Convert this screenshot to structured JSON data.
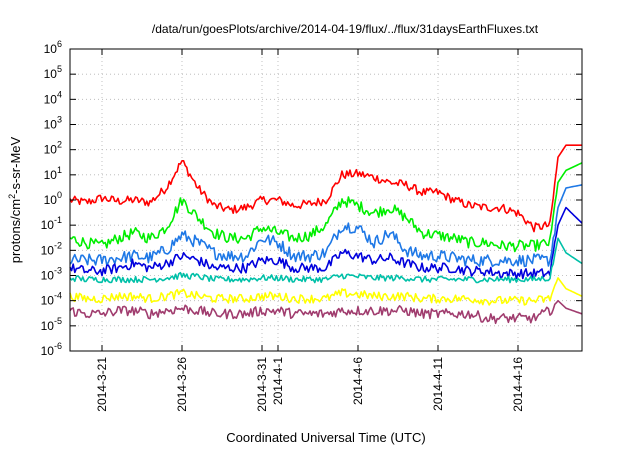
{
  "chart_data": {
    "type": "line",
    "title": "/data/run/goesPlots/archive/2014-04-19/flux/../flux/31daysEarthFluxes.txt",
    "xlabel": "Coordinated Universal Time (UTC)",
    "ylabel": {
      "prefix": "protons/cm",
      "sup": "2",
      "suffix": "-s-sr-MeV"
    },
    "y_scale": "log",
    "ylim": [
      1e-06,
      1000000.0
    ],
    "xlim": [
      "2014-03-19",
      "2014-04-20"
    ],
    "grid": true,
    "x_ticks": [
      {
        "x": "2014-03-21",
        "label": "2014-3-21"
      },
      {
        "x": "2014-03-26",
        "label": "2014-3-26"
      },
      {
        "x": "2014-03-31",
        "label": "2014-3-31"
      },
      {
        "x": "2014-04-01",
        "label": "2014-4-1"
      },
      {
        "x": "2014-04-06",
        "label": "2014-4-6"
      },
      {
        "x": "2014-04-11",
        "label": "2014-4-11"
      },
      {
        "x": "2014-04-16",
        "label": "2014-4-16"
      }
    ],
    "y_ticks": [
      {
        "exp": "-6"
      },
      {
        "exp": "-5"
      },
      {
        "exp": "-4"
      },
      {
        "exp": "-3"
      },
      {
        "exp": "-2"
      },
      {
        "exp": "-1"
      },
      {
        "exp": "0"
      },
      {
        "exp": "1"
      },
      {
        "exp": "2"
      },
      {
        "exp": "3"
      },
      {
        "exp": "4"
      },
      {
        "exp": "5"
      },
      {
        "exp": "6"
      }
    ],
    "series": [
      {
        "color": "#ff0000",
        "values": [
          [
            "2014-03-19",
            1.0
          ],
          [
            "2014-03-20",
            0.8
          ],
          [
            "2014-03-21",
            1.2
          ],
          [
            "2014-03-22",
            0.9
          ],
          [
            "2014-03-23",
            1.0
          ],
          [
            "2014-03-24",
            0.8
          ],
          [
            "2014-03-25",
            3.0
          ],
          [
            "2014-03-26",
            35
          ],
          [
            "2014-03-27",
            3.0
          ],
          [
            "2014-03-28",
            0.6
          ],
          [
            "2014-03-29",
            0.4
          ],
          [
            "2014-03-30",
            0.5
          ],
          [
            "2014-03-31",
            1.0
          ],
          [
            "2014-04-01",
            1.0
          ],
          [
            "2014-04-02",
            0.6
          ],
          [
            "2014-04-03",
            0.7
          ],
          [
            "2014-04-04",
            1.0
          ],
          [
            "2014-04-05",
            10
          ],
          [
            "2014-04-06",
            11
          ],
          [
            "2014-04-07",
            8
          ],
          [
            "2014-04-08",
            5
          ],
          [
            "2014-04-09",
            4
          ],
          [
            "2014-04-10",
            2.0
          ],
          [
            "2014-04-11",
            2.0
          ],
          [
            "2014-04-12",
            1.0
          ],
          [
            "2014-04-13",
            0.6
          ],
          [
            "2014-04-14",
            0.5
          ],
          [
            "2014-04-15",
            0.5
          ],
          [
            "2014-04-16",
            0.3
          ],
          [
            "2014-04-17",
            0.08
          ],
          [
            "2014-04-18",
            0.1
          ],
          [
            "2014-04-18.5",
            50
          ],
          [
            "2014-04-19",
            150
          ],
          [
            "2014-04-20",
            150
          ]
        ]
      },
      {
        "color": "#00ee00",
        "values": [
          [
            "2014-03-19",
            0.03
          ],
          [
            "2014-03-20",
            0.02
          ],
          [
            "2014-03-21",
            0.015
          ],
          [
            "2014-03-22",
            0.03
          ],
          [
            "2014-03-23",
            0.05
          ],
          [
            "2014-03-24",
            0.03
          ],
          [
            "2014-03-25",
            0.08
          ],
          [
            "2014-03-26",
            1.0
          ],
          [
            "2014-03-27",
            0.2
          ],
          [
            "2014-03-28",
            0.05
          ],
          [
            "2014-03-29",
            0.03
          ],
          [
            "2014-03-30",
            0.03
          ],
          [
            "2014-03-31",
            0.08
          ],
          [
            "2014-04-01",
            0.05
          ],
          [
            "2014-04-02",
            0.03
          ],
          [
            "2014-04-03",
            0.04
          ],
          [
            "2014-04-04",
            0.1
          ],
          [
            "2014-04-05",
            1.0
          ],
          [
            "2014-04-06",
            0.6
          ],
          [
            "2014-04-07",
            0.3
          ],
          [
            "2014-04-08",
            0.5
          ],
          [
            "2014-04-09",
            0.2
          ],
          [
            "2014-04-10",
            0.05
          ],
          [
            "2014-04-11",
            0.04
          ],
          [
            "2014-04-12",
            0.03
          ],
          [
            "2014-04-13",
            0.02
          ],
          [
            "2014-04-14",
            0.02
          ],
          [
            "2014-04-15",
            0.015
          ],
          [
            "2014-04-16",
            0.015
          ],
          [
            "2014-04-17",
            0.015
          ],
          [
            "2014-04-18",
            0.02
          ],
          [
            "2014-04-18.5",
            5
          ],
          [
            "2014-04-19",
            15
          ],
          [
            "2014-04-20",
            30
          ]
        ]
      },
      {
        "color": "#1e78e6",
        "values": [
          [
            "2014-03-19",
            0.004
          ],
          [
            "2014-03-20",
            0.004
          ],
          [
            "2014-03-21",
            0.004
          ],
          [
            "2014-03-22",
            0.005
          ],
          [
            "2014-03-23",
            0.006
          ],
          [
            "2014-03-24",
            0.005
          ],
          [
            "2014-03-25",
            0.01
          ],
          [
            "2014-03-26",
            0.04
          ],
          [
            "2014-03-27",
            0.02
          ],
          [
            "2014-03-28",
            0.008
          ],
          [
            "2014-03-29",
            0.006
          ],
          [
            "2014-03-30",
            0.006
          ],
          [
            "2014-03-31",
            0.03
          ],
          [
            "2014-04-01",
            0.02
          ],
          [
            "2014-04-02",
            0.006
          ],
          [
            "2014-04-03",
            0.006
          ],
          [
            "2014-04-04",
            0.008
          ],
          [
            "2014-04-05",
            0.1
          ],
          [
            "2014-04-06",
            0.08
          ],
          [
            "2014-04-07",
            0.02
          ],
          [
            "2014-04-08",
            0.05
          ],
          [
            "2014-04-09",
            0.01
          ],
          [
            "2014-04-10",
            0.006
          ],
          [
            "2014-04-11",
            0.006
          ],
          [
            "2014-04-12",
            0.005
          ],
          [
            "2014-04-13",
            0.004
          ],
          [
            "2014-04-14",
            0.004
          ],
          [
            "2014-04-15",
            0.004
          ],
          [
            "2014-04-16",
            0.004
          ],
          [
            "2014-04-17",
            0.004
          ],
          [
            "2014-04-18",
            0.004
          ],
          [
            "2014-04-18.5",
            0.5
          ],
          [
            "2014-04-19",
            3
          ],
          [
            "2014-04-20",
            4
          ]
        ]
      },
      {
        "color": "#0000dd",
        "values": [
          [
            "2014-03-19",
            0.002
          ],
          [
            "2014-03-20",
            0.0015
          ],
          [
            "2014-03-21",
            0.0015
          ],
          [
            "2014-03-22",
            0.002
          ],
          [
            "2014-03-23",
            0.003
          ],
          [
            "2014-03-24",
            0.002
          ],
          [
            "2014-03-25",
            0.003
          ],
          [
            "2014-03-26",
            0.006
          ],
          [
            "2014-03-27",
            0.004
          ],
          [
            "2014-03-28",
            0.002
          ],
          [
            "2014-03-29",
            0.002
          ],
          [
            "2014-03-30",
            0.002
          ],
          [
            "2014-03-31",
            0.004
          ],
          [
            "2014-04-01",
            0.004
          ],
          [
            "2014-04-02",
            0.002
          ],
          [
            "2014-04-03",
            0.002
          ],
          [
            "2014-04-04",
            0.002
          ],
          [
            "2014-04-05",
            0.008
          ],
          [
            "2014-04-06",
            0.006
          ],
          [
            "2014-04-07",
            0.004
          ],
          [
            "2014-04-08",
            0.005
          ],
          [
            "2014-04-09",
            0.003
          ],
          [
            "2014-04-10",
            0.002
          ],
          [
            "2014-04-11",
            0.002
          ],
          [
            "2014-04-12",
            0.002
          ],
          [
            "2014-04-13",
            0.0015
          ],
          [
            "2014-04-14",
            0.0015
          ],
          [
            "2014-04-15",
            0.0012
          ],
          [
            "2014-04-16",
            0.0012
          ],
          [
            "2014-04-17",
            0.0012
          ],
          [
            "2014-04-18",
            0.0012
          ],
          [
            "2014-04-18.5",
            0.1
          ],
          [
            "2014-04-19",
            0.5
          ],
          [
            "2014-04-20",
            0.12
          ]
        ]
      },
      {
        "color": "#00c0a8",
        "values": [
          [
            "2014-03-19",
            0.0008
          ],
          [
            "2014-03-20",
            0.0007
          ],
          [
            "2014-03-21",
            0.0007
          ],
          [
            "2014-03-22",
            0.0007
          ],
          [
            "2014-03-23",
            0.0007
          ],
          [
            "2014-03-24",
            0.0007
          ],
          [
            "2014-03-25",
            0.0008
          ],
          [
            "2014-03-26",
            0.001
          ],
          [
            "2014-03-27",
            0.0009
          ],
          [
            "2014-03-28",
            0.0007
          ],
          [
            "2014-03-29",
            0.0007
          ],
          [
            "2014-03-30",
            0.0007
          ],
          [
            "2014-03-31",
            0.0008
          ],
          [
            "2014-04-01",
            0.0008
          ],
          [
            "2014-04-02",
            0.0007
          ],
          [
            "2014-04-03",
            0.0007
          ],
          [
            "2014-04-04",
            0.0007
          ],
          [
            "2014-04-05",
            0.001
          ],
          [
            "2014-04-06",
            0.0009
          ],
          [
            "2014-04-07",
            0.0008
          ],
          [
            "2014-04-08",
            0.0008
          ],
          [
            "2014-04-09",
            0.0008
          ],
          [
            "2014-04-10",
            0.0007
          ],
          [
            "2014-04-11",
            0.0007
          ],
          [
            "2014-04-12",
            0.0007
          ],
          [
            "2014-04-13",
            0.0007
          ],
          [
            "2014-04-14",
            0.0007
          ],
          [
            "2014-04-15",
            0.0007
          ],
          [
            "2014-04-16",
            0.0007
          ],
          [
            "2014-04-17",
            0.0007
          ],
          [
            "2014-04-18",
            0.0008
          ],
          [
            "2014-04-18.5",
            0.03
          ],
          [
            "2014-04-19",
            0.008
          ],
          [
            "2014-04-20",
            0.003
          ]
        ]
      },
      {
        "color": "#ffff00",
        "values": [
          [
            "2014-03-19",
            0.00015
          ],
          [
            "2014-03-20",
            0.00012
          ],
          [
            "2014-03-21",
            0.00012
          ],
          [
            "2014-03-22",
            0.00015
          ],
          [
            "2014-03-23",
            0.00015
          ],
          [
            "2014-03-24",
            0.00012
          ],
          [
            "2014-03-25",
            0.00015
          ],
          [
            "2014-03-26",
            0.0002
          ],
          [
            "2014-03-27",
            0.00015
          ],
          [
            "2014-03-28",
            0.00012
          ],
          [
            "2014-03-29",
            0.00012
          ],
          [
            "2014-03-30",
            0.00012
          ],
          [
            "2014-03-31",
            0.00015
          ],
          [
            "2014-04-01",
            0.00015
          ],
          [
            "2014-04-02",
            0.00012
          ],
          [
            "2014-04-03",
            0.00012
          ],
          [
            "2014-04-04",
            0.00012
          ],
          [
            "2014-04-05",
            0.0002
          ],
          [
            "2014-04-06",
            0.00018
          ],
          [
            "2014-04-07",
            0.00015
          ],
          [
            "2014-04-08",
            0.00015
          ],
          [
            "2014-04-09",
            0.00015
          ],
          [
            "2014-04-10",
            0.00012
          ],
          [
            "2014-04-11",
            0.00012
          ],
          [
            "2014-04-12",
            0.00012
          ],
          [
            "2014-04-13",
            0.00012
          ],
          [
            "2014-04-14",
            0.0001
          ],
          [
            "2014-04-15",
            0.0001
          ],
          [
            "2014-04-16",
            0.0001
          ],
          [
            "2014-04-17",
            0.0001
          ],
          [
            "2014-04-18",
            0.00012
          ],
          [
            "2014-04-18.5",
            0.0008
          ],
          [
            "2014-04-19",
            0.0003
          ],
          [
            "2014-04-20",
            0.00015
          ]
        ]
      },
      {
        "color": "#a03c6e",
        "values": [
          [
            "2014-03-19",
            4e-05
          ],
          [
            "2014-03-20",
            3e-05
          ],
          [
            "2014-03-21",
            3e-05
          ],
          [
            "2014-03-22",
            4e-05
          ],
          [
            "2014-03-23",
            4e-05
          ],
          [
            "2014-03-24",
            3e-05
          ],
          [
            "2014-03-25",
            4e-05
          ],
          [
            "2014-03-26",
            5e-05
          ],
          [
            "2014-03-27",
            4e-05
          ],
          [
            "2014-03-28",
            3e-05
          ],
          [
            "2014-03-29",
            3e-05
          ],
          [
            "2014-03-30",
            3e-05
          ],
          [
            "2014-03-31",
            4e-05
          ],
          [
            "2014-04-01",
            4e-05
          ],
          [
            "2014-04-02",
            3e-05
          ],
          [
            "2014-04-03",
            3e-05
          ],
          [
            "2014-04-04",
            3e-05
          ],
          [
            "2014-04-05",
            4e-05
          ],
          [
            "2014-04-06",
            4e-05
          ],
          [
            "2014-04-07",
            4e-05
          ],
          [
            "2014-04-08",
            4e-05
          ],
          [
            "2014-04-09",
            4e-05
          ],
          [
            "2014-04-10",
            3e-05
          ],
          [
            "2014-04-11",
            3e-05
          ],
          [
            "2014-04-12",
            3e-05
          ],
          [
            "2014-04-13",
            3e-05
          ],
          [
            "2014-04-14",
            2e-05
          ],
          [
            "2014-04-15",
            2e-05
          ],
          [
            "2014-04-16",
            2e-05
          ],
          [
            "2014-04-17",
            2e-05
          ],
          [
            "2014-04-18",
            4e-05
          ],
          [
            "2014-04-18.5",
            0.0001
          ],
          [
            "2014-04-19",
            5e-05
          ],
          [
            "2014-04-20",
            3e-05
          ]
        ]
      }
    ]
  }
}
